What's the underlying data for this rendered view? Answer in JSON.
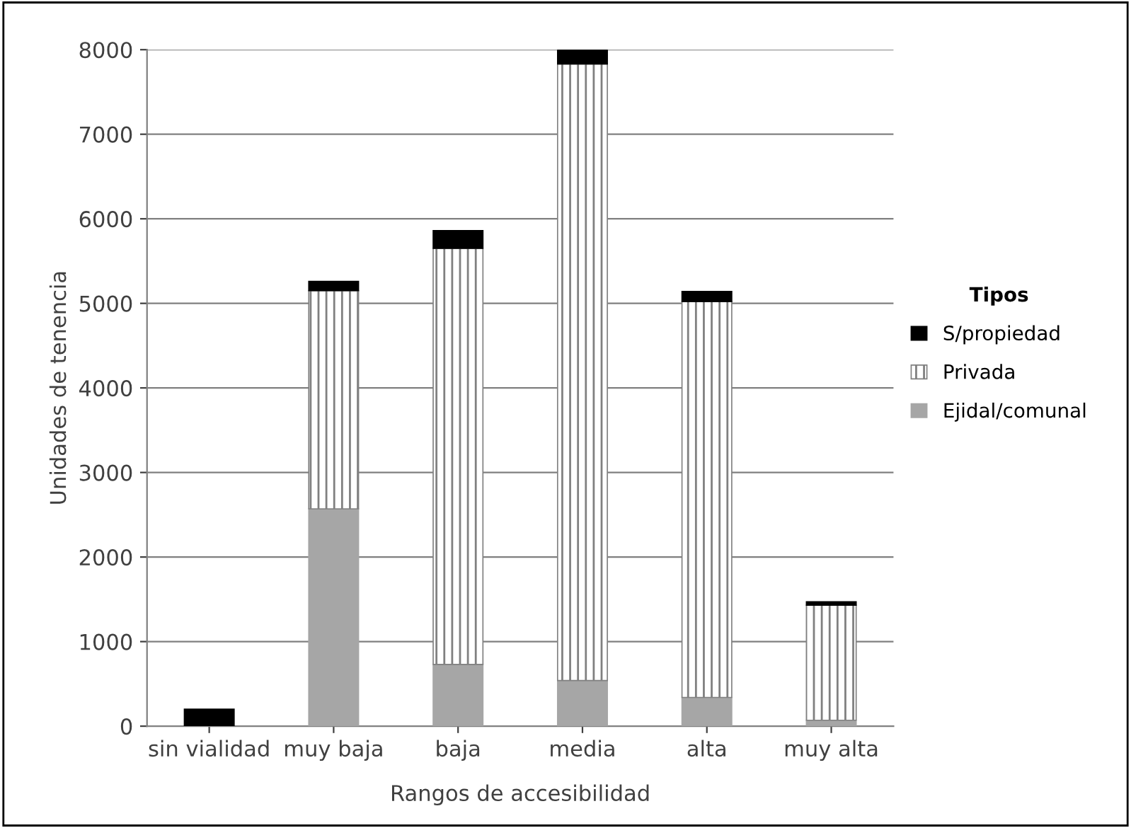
{
  "chart_data": {
    "type": "bar",
    "stacked": true,
    "xlabel": "Rangos de accesibilidad",
    "ylabel": "Unidades de tenencia",
    "legend_title": "Tipos",
    "legend": "right",
    "categories": [
      "sin vialidad",
      "muy baja",
      "baja",
      "media",
      "alta",
      "muy alta"
    ],
    "series": [
      {
        "name": "Ejidal/comunal",
        "color": "#a6a6a6",
        "values": [
          0,
          2570,
          730,
          540,
          340,
          70
        ]
      },
      {
        "name": "Privada",
        "color": "#808080",
        "values": [
          0,
          2580,
          4920,
          7290,
          4680,
          1360
        ]
      },
      {
        "name": "S/propiedad",
        "color": "#000000",
        "values": [
          200,
          110,
          210,
          170,
          120,
          40
        ]
      }
    ],
    "ylim": [
      0,
      8000
    ],
    "yticks": [
      0,
      1000,
      2000,
      3000,
      4000,
      5000,
      6000,
      7000,
      8000
    ],
    "grid": "y"
  }
}
